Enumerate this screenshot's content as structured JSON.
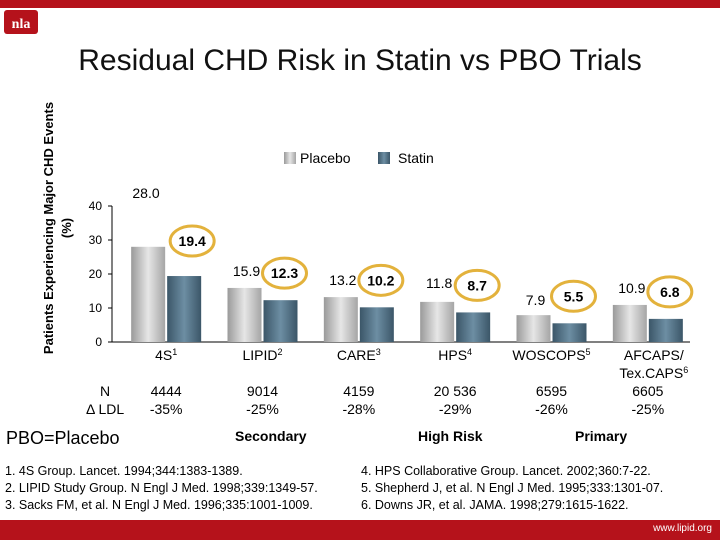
{
  "title": "Residual CHD Risk in Statin vs PBO Trials",
  "logo_text": "nla",
  "row_labels": {
    "n": "N",
    "ldl": "Δ LDL"
  },
  "abbrev": "PBO=Placebo",
  "groups": {
    "secondary": "Secondary",
    "high_risk": "High Risk",
    "primary": "Primary"
  },
  "trials": [
    {
      "n": "4444",
      "ldl": "-35%"
    },
    {
      "n": "9014",
      "ldl": "-25%"
    },
    {
      "n": "4159",
      "ldl": "-28%"
    },
    {
      "n": "20 536",
      "ldl": "-29%"
    },
    {
      "n": "6595",
      "ldl": "-26%"
    },
    {
      "n": "6605",
      "ldl": "-25%"
    }
  ],
  "references": {
    "r1": "1. 4S Group. Lancet. 1994;344:1383-1389.",
    "r2": "2. LIPID Study Group. N Engl J Med. 1998;339:1349-57.",
    "r3": "3. Sacks FM, et al. N Engl J Med. 1996;335:1001-1009.",
    "r4": "4. HPS Collaborative Group. Lancet. 2002;360:7-22.",
    "r5": "5. Shepherd J, et al. N Engl J Med. 1995;333:1301-07.",
    "r6": "6. Downs JR, et al. JAMA. 1998;279:1615-1622."
  },
  "footer_url": "www.lipid.org",
  "colors": {
    "brand_red": "#b5121b",
    "placebo_bar": "#b8b8b8",
    "statin_bar": "#4a6a80",
    "highlight_ring": "#e3b23c"
  },
  "chart_data": {
    "type": "bar",
    "ylabel": "Patients Experiencing Major CHD Events (%)",
    "ylim": [
      0,
      40
    ],
    "yticks": [
      "0",
      "10",
      "20",
      "30",
      "40"
    ],
    "grid": false,
    "legend_position": "top",
    "categories": [
      {
        "name": "4S",
        "sup": "1"
      },
      {
        "name": "LIPID",
        "sup": "2"
      },
      {
        "name": "CARE",
        "sup": "3"
      },
      {
        "name": "HPS",
        "sup": "4"
      },
      {
        "name": "WOSCOPS",
        "sup": "5"
      },
      {
        "name": "AFCAPS/ Tex.CAPS",
        "sup": "6"
      }
    ],
    "series": [
      {
        "name": "Placebo",
        "values": [
          28.0,
          15.9,
          13.2,
          11.8,
          7.9,
          10.9
        ],
        "labels": [
          "28.0",
          "15.9",
          "13.2",
          "11.8",
          "7.9",
          "10.9"
        ]
      },
      {
        "name": "Statin",
        "values": [
          19.4,
          12.3,
          10.2,
          8.7,
          5.5,
          6.8
        ],
        "labels": [
          "19.4",
          "12.3",
          "10.2",
          "8.7",
          "5.5",
          "6.8"
        ]
      }
    ]
  }
}
